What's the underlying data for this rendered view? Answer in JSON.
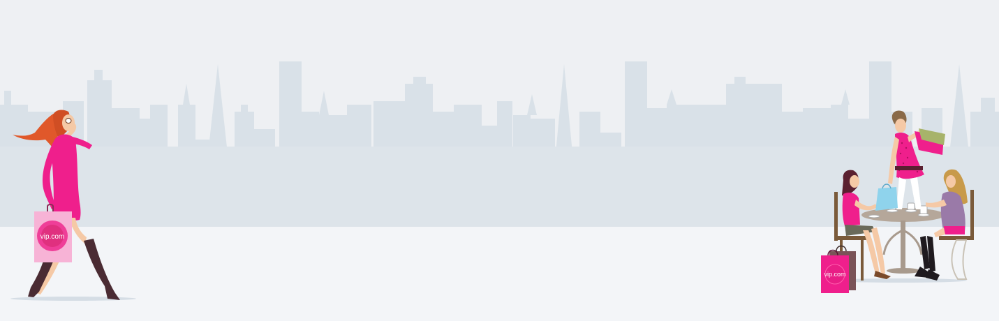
{
  "banner": {
    "left_bag_logo": "vip.com",
    "right_bag_logo": "vip.com"
  },
  "colors": {
    "sky": "#eef0f3",
    "skyline": "#d9e1e8",
    "ground": "#f3f5f8",
    "brand_pink": "#ef1f8c",
    "light_pink": "#f7b3d6"
  },
  "scene": {
    "elements": [
      "city-skyline",
      "walking-woman-with-shopping-bag",
      "cafe-table-with-three-women"
    ]
  }
}
